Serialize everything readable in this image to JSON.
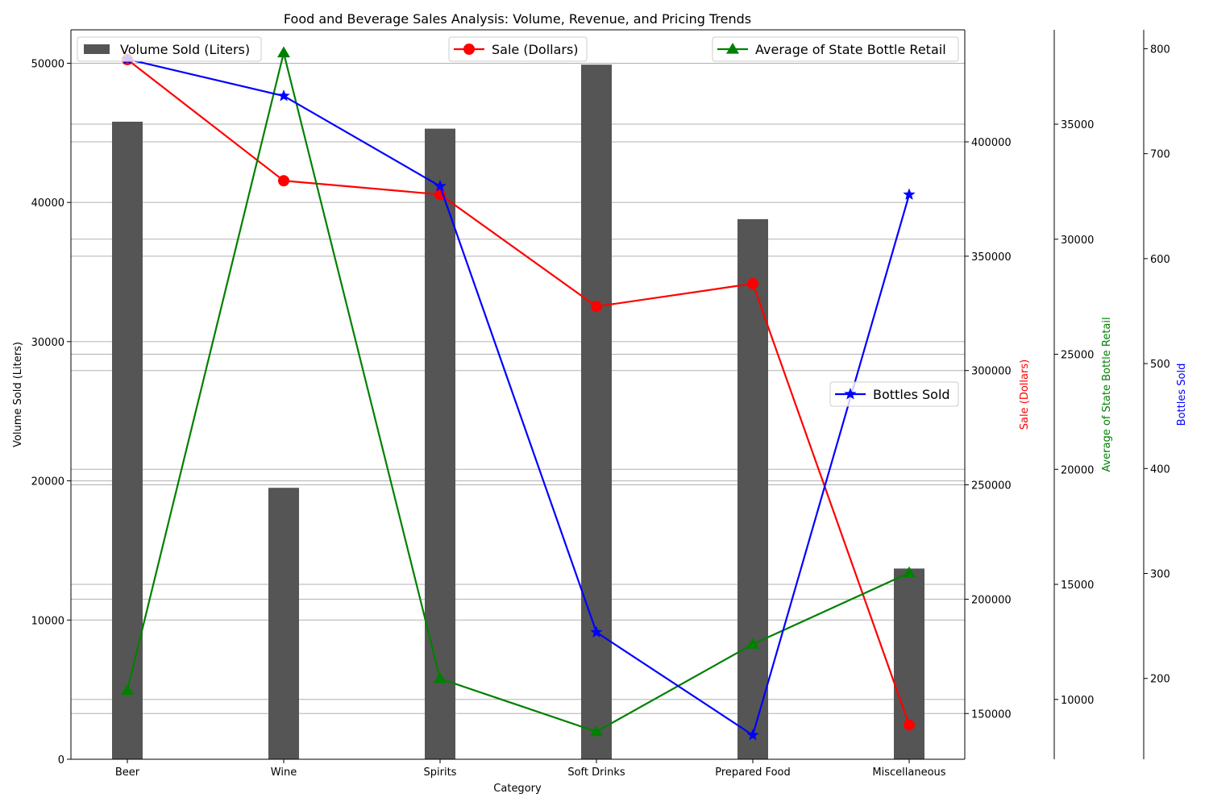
{
  "chart_data": {
    "type": "bar",
    "title": "Food and Beverage Sales Analysis: Volume, Revenue, and Pricing Trends",
    "xlabel": "Category",
    "categories": [
      "Beer",
      "Wine",
      "Spirits",
      "Soft Drinks",
      "Prepared Food",
      "Miscellaneous"
    ],
    "grid": true,
    "series": [
      {
        "name": "Volume Sold (Liters)",
        "type": "bar",
        "axis": "left",
        "ylabel": "Volume Sold (Liters)",
        "ylim": [
          0,
          52400
        ],
        "ticks": [
          0,
          10000,
          20000,
          30000,
          40000,
          50000
        ],
        "color": "#555555",
        "values": [
          45800,
          19500,
          45300,
          49900,
          38800,
          13700
        ]
      },
      {
        "name": "Sale (Dollars)",
        "type": "line",
        "marker": "circle",
        "axis": "right1",
        "ylabel": "Sale (Dollars)",
        "ylim": [
          130000,
          449000
        ],
        "ticks": [
          150000,
          200000,
          250000,
          300000,
          350000,
          400000
        ],
        "color": "#ff0000",
        "values": [
          436000,
          383000,
          377000,
          328000,
          338000,
          145000
        ]
      },
      {
        "name": "Average of State Bottle Retail",
        "type": "line",
        "marker": "triangle",
        "axis": "right2",
        "ylabel": "Average of State Bottle Retail",
        "ylim": [
          7400,
          39100
        ],
        "ticks": [
          10000,
          15000,
          20000,
          25000,
          30000,
          35000
        ],
        "color": "#008000",
        "values": [
          10400,
          38100,
          10900,
          8600,
          12400,
          15500
        ]
      },
      {
        "name": "Bottles Sold",
        "type": "line",
        "marker": "star",
        "axis": "right3",
        "ylabel": "Bottles Sold",
        "ylim": [
          123,
          818
        ],
        "ticks": [
          200,
          300,
          400,
          500,
          600,
          700,
          800
        ],
        "color": "#0000ff",
        "values": [
          790,
          755,
          669,
          244,
          146,
          661
        ]
      }
    ],
    "legends": [
      {
        "series": "Volume Sold (Liters)",
        "placement": "upper-left"
      },
      {
        "series": "Sale (Dollars)",
        "placement": "upper-center"
      },
      {
        "series": "Average of State Bottle Retail",
        "placement": "upper-right"
      },
      {
        "series": "Bottles Sold",
        "placement": "center-right"
      }
    ]
  }
}
